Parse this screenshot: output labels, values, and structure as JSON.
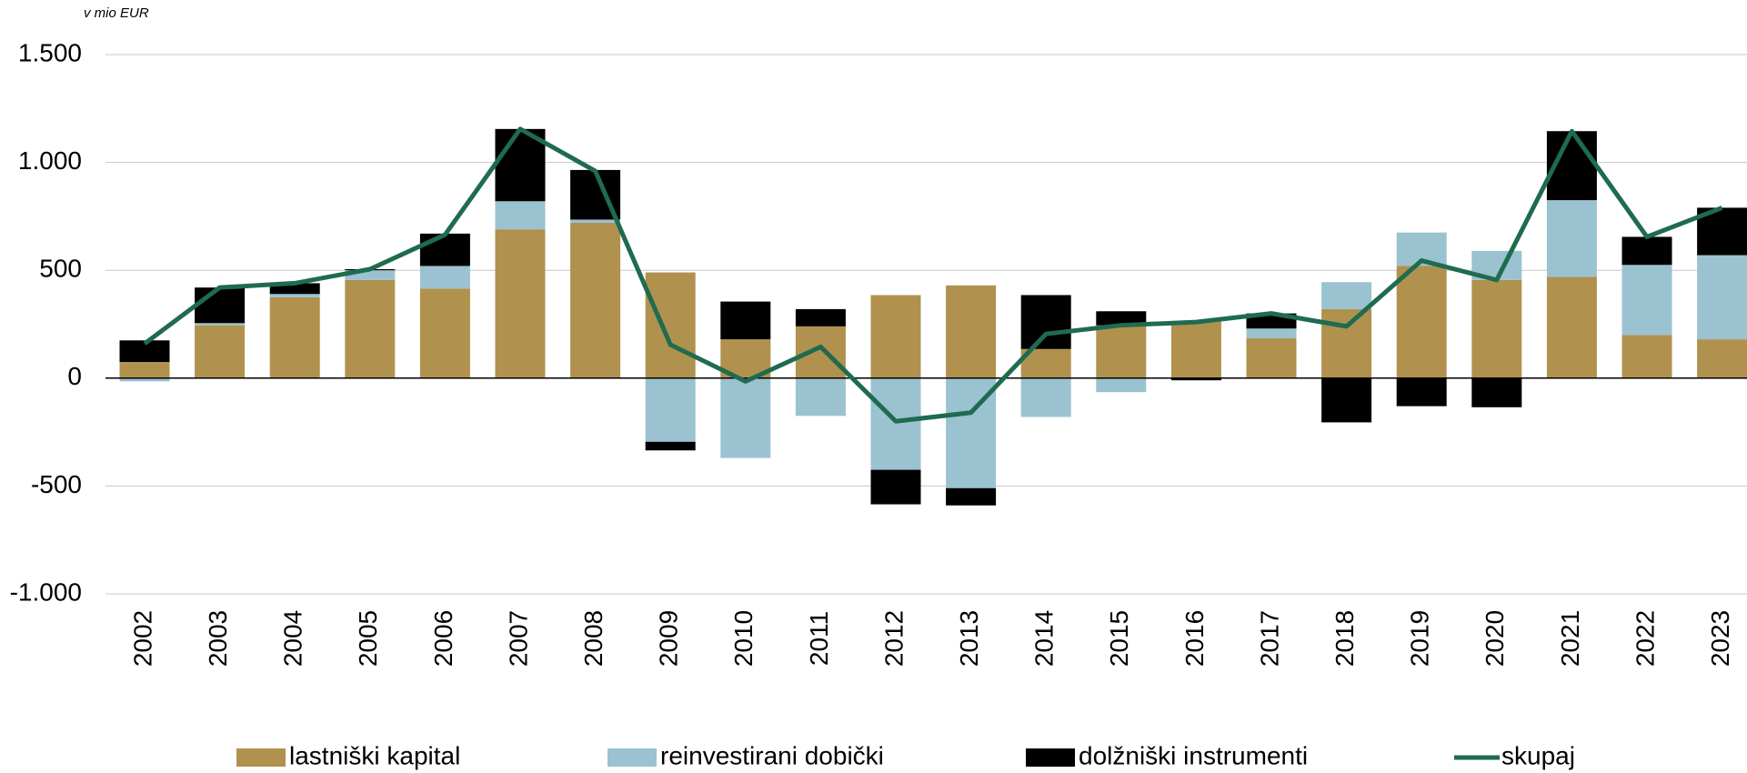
{
  "chart_data": {
    "type": "bar",
    "stacked": true,
    "unit_label": "v mio EUR",
    "categories": [
      "2002",
      "2003",
      "2004",
      "2005",
      "2006",
      "2007",
      "2008",
      "2009",
      "2010",
      "2011",
      "2012",
      "2013",
      "2014",
      "2015",
      "2016",
      "2017",
      "2018",
      "2019",
      "2020",
      "2021",
      "2022",
      "2023"
    ],
    "series": [
      {
        "name": "lastniški kapital",
        "type": "bar",
        "color": "#b0924e",
        "values": [
          75,
          245,
          375,
          455,
          415,
          690,
          720,
          490,
          180,
          240,
          385,
          430,
          135,
          245,
          265,
          185,
          320,
          520,
          455,
          470,
          200,
          180
        ]
      },
      {
        "name": "reinvestirani dobički",
        "type": "bar",
        "color": "#9bc2d0",
        "values": [
          -15,
          10,
          15,
          45,
          105,
          130,
          15,
          -295,
          -370,
          -175,
          -425,
          -510,
          -180,
          -65,
          0,
          45,
          125,
          155,
          135,
          355,
          325,
          390
        ]
      },
      {
        "name": "dolžniški instrumenti",
        "type": "bar",
        "color": "#000000",
        "values": [
          100,
          165,
          50,
          5,
          150,
          335,
          230,
          -40,
          175,
          80,
          -160,
          -80,
          250,
          65,
          -10,
          70,
          -205,
          -130,
          -135,
          320,
          130,
          220
        ]
      },
      {
        "name": "skupaj",
        "type": "line",
        "color": "#1f6b50",
        "values": [
          160,
          420,
          440,
          505,
          665,
          1155,
          960,
          155,
          -15,
          145,
          -200,
          -160,
          205,
          245,
          260,
          300,
          240,
          545,
          455,
          1145,
          655,
          790
        ]
      }
    ],
    "ylim": [
      -1000,
      1500
    ],
    "yticks": [
      {
        "value": -1000,
        "label": "-1.000"
      },
      -500,
      0,
      500,
      {
        "value": 1000,
        "label": "1.000"
      },
      {
        "value": 1500,
        "label": "1.500"
      }
    ],
    "grid": true,
    "legend": "bottom"
  }
}
